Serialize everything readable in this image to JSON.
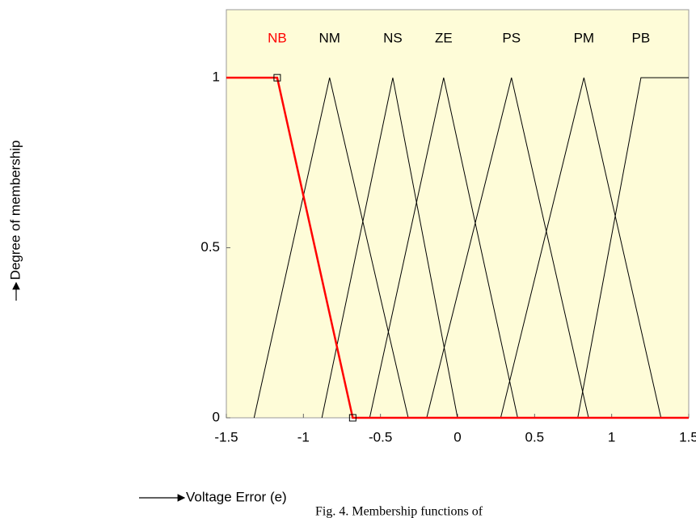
{
  "chart_data": {
    "type": "line",
    "xlabel": "Voltage Error (e)",
    "ylabel": "Degree of membership",
    "caption": "Fig. 4. Membership functions of",
    "xlim": [
      -1.5,
      1.5
    ],
    "xticks": [
      -1.5,
      -1,
      -0.5,
      0,
      0.5,
      1,
      1.5
    ],
    "ylim": [
      0,
      1.2
    ],
    "yticks": [
      0,
      0.5,
      1
    ],
    "series": [
      {
        "name": "NB",
        "color": "#ff0000",
        "x": [
          -1.5,
          -1.17,
          -0.68,
          1.5
        ],
        "values": [
          1,
          1,
          0,
          0
        ]
      },
      {
        "name": "NM",
        "color": "#000000",
        "x": [
          -1.32,
          -0.83,
          -0.32
        ],
        "values": [
          0,
          1,
          0
        ]
      },
      {
        "name": "NS",
        "color": "#000000",
        "x": [
          -0.88,
          -0.42,
          0
        ],
        "values": [
          0,
          1,
          0
        ]
      },
      {
        "name": "ZE",
        "color": "#000000",
        "x": [
          -0.57,
          -0.09,
          0.39
        ],
        "values": [
          0,
          1,
          0
        ]
      },
      {
        "name": "PS",
        "color": "#000000",
        "x": [
          -0.2,
          0.35,
          0.85
        ],
        "values": [
          0,
          1,
          0
        ]
      },
      {
        "name": "PM",
        "color": "#000000",
        "x": [
          0.28,
          0.82,
          1.32
        ],
        "values": [
          0,
          1,
          0
        ]
      },
      {
        "name": "PB",
        "color": "#000000",
        "x": [
          0.78,
          1.19,
          1.5
        ],
        "values": [
          0,
          1,
          1
        ]
      }
    ]
  }
}
